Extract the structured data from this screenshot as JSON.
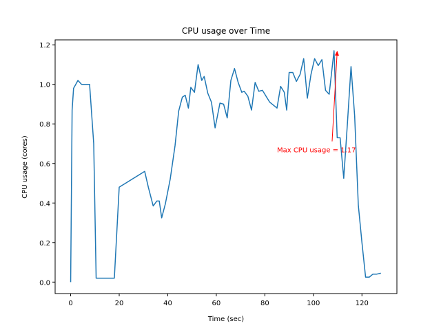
{
  "chart_data": {
    "type": "line",
    "title": "CPU usage over Time",
    "xlabel": "Time (sec)",
    "ylabel": "CPU usage (cores)",
    "xlim": [
      -6.4,
      134.4
    ],
    "ylim": [
      -0.058,
      1.225
    ],
    "xticks": [
      0,
      20,
      40,
      60,
      80,
      100,
      120
    ],
    "yticks": [
      0.0,
      0.2,
      0.4,
      0.6,
      0.8,
      1.0,
      1.2
    ],
    "ytick_labels": [
      "0.0",
      "0.2",
      "0.4",
      "0.6",
      "0.8",
      "1.0",
      "1.2"
    ],
    "grid": false,
    "series": [
      {
        "color": "#1f77b4",
        "x": [
          0,
          0.6,
          1.2,
          3,
          4.5,
          6.5,
          7.8,
          9.5,
          10.5,
          14,
          18,
          20,
          30.5,
          32,
          34,
          35.5,
          36.5,
          37.5,
          39,
          41,
          43,
          44.5,
          46,
          47.2,
          48.5,
          49.5,
          51,
          52.5,
          54,
          55,
          56.5,
          58,
          59.5,
          61.5,
          63,
          64.5,
          66,
          67.5,
          69,
          70.5,
          71.5,
          73,
          74.5,
          76,
          77.5,
          79,
          80.5,
          82,
          85,
          86.5,
          88,
          89,
          90,
          91.5,
          93,
          94.5,
          96,
          97.5,
          99,
          100.5,
          102,
          103.5,
          105,
          106.5,
          108.5,
          109.8,
          111,
          112.5,
          114,
          115.5,
          117,
          118.5,
          120,
          121.5,
          123,
          124.5,
          126,
          127.8
        ],
        "y": [
          0.0,
          0.87,
          0.98,
          1.02,
          1.0,
          1.0,
          1.0,
          0.7,
          0.02,
          0.02,
          0.02,
          0.48,
          0.56,
          0.48,
          0.385,
          0.41,
          0.41,
          0.325,
          0.395,
          0.52,
          0.69,
          0.865,
          0.935,
          0.945,
          0.88,
          0.985,
          0.96,
          1.1,
          1.02,
          1.04,
          0.955,
          0.91,
          0.78,
          0.905,
          0.9,
          0.83,
          1.02,
          1.08,
          1.01,
          0.96,
          0.965,
          0.94,
          0.87,
          1.01,
          0.965,
          0.97,
          0.94,
          0.91,
          0.88,
          0.99,
          0.96,
          0.87,
          1.06,
          1.06,
          1.015,
          1.05,
          1.13,
          0.93,
          1.05,
          1.13,
          1.095,
          1.125,
          0.97,
          0.95,
          1.17,
          0.73,
          0.73,
          0.525,
          0.8,
          1.09,
          0.84,
          0.39,
          0.2,
          0.025,
          0.025,
          0.04,
          0.04,
          0.045
        ]
      }
    ],
    "annotation": {
      "text": "Max CPU usage = 1.17",
      "color": "#ff0000",
      "xy": [
        109.8,
        1.17
      ],
      "xytext": [
        85,
        0.67
      ]
    }
  }
}
